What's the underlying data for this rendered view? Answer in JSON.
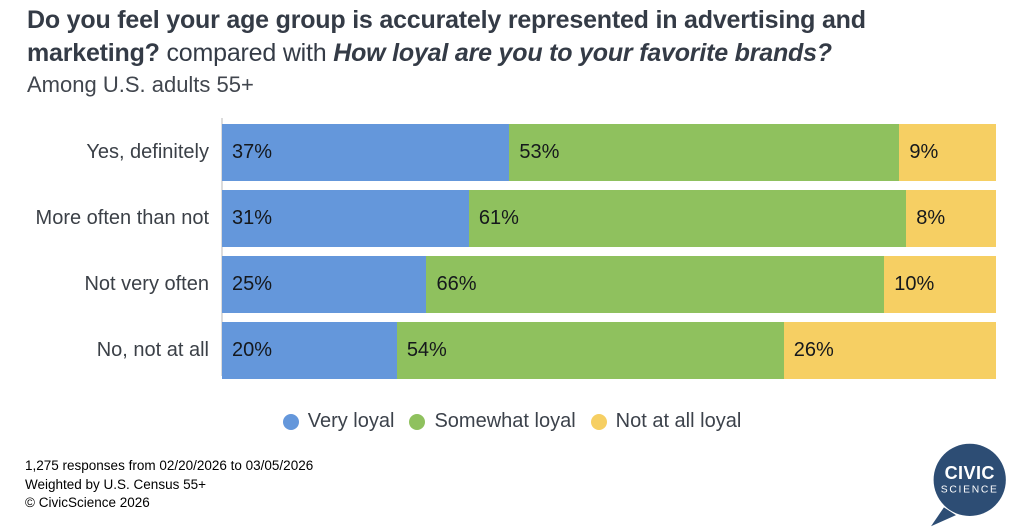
{
  "header": {
    "title_question_1": "Do you feel your age group is accurately represented in advertising and marketing?",
    "title_connector": " compared with ",
    "title_question_2": "How loyal are you to your favorite brands?",
    "subtitle": "Among U.S. adults 55+"
  },
  "chart_data": {
    "type": "bar",
    "orientation": "horizontal-stacked",
    "categories": [
      "Yes, definitely",
      "More often than not",
      "Not very often",
      "No, not at all"
    ],
    "series": [
      {
        "name": "Very loyal",
        "color": "#6497db",
        "values": [
          37,
          31,
          25,
          20
        ]
      },
      {
        "name": "Somewhat loyal",
        "color": "#8fc15e",
        "values": [
          53,
          61,
          66,
          54
        ]
      },
      {
        "name": "Not at all loyal",
        "color": "#f6cf63",
        "values": [
          9,
          8,
          10,
          26
        ]
      }
    ],
    "value_suffix": "%",
    "legend_position": "bottom",
    "axis_color": "#dcdcdc",
    "xlim": [
      0,
      100
    ],
    "grid": false
  },
  "footer": {
    "lines": [
      "1,275 responses from 02/20/2026 to 03/05/2026",
      "Weighted by U.S. Census 55+",
      "© CivicScience 2026"
    ]
  },
  "logo": {
    "line1": "CIVIC",
    "line2": "SCIENCE",
    "bubble_color": "#2d4d74",
    "text_color": "#ffffff"
  }
}
